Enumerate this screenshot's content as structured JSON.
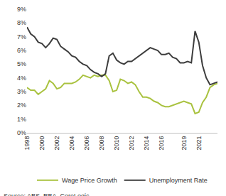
{
  "chart_data": {
    "type": "line",
    "x": [
      1998,
      1998.5,
      1999,
      1999.5,
      2000,
      2000.5,
      2001,
      2001.5,
      2002,
      2002.5,
      2003,
      2003.5,
      2004,
      2004.5,
      2005,
      2005.5,
      2006,
      2006.5,
      2007,
      2007.5,
      2008,
      2008.5,
      2009,
      2009.5,
      2010,
      2010.5,
      2011,
      2011.5,
      2012,
      2012.5,
      2013,
      2013.5,
      2014,
      2014.5,
      2015,
      2015.5,
      2016,
      2016.5,
      2017,
      2017.5,
      2018,
      2018.5,
      2019,
      2019.5,
      2020,
      2020.5,
      2021,
      2021.5,
      2022,
      2022.5,
      2023,
      2023.5
    ],
    "series": [
      {
        "name": "Wage Price Growth",
        "color": "#a9c23f",
        "values": [
          3.3,
          3.1,
          3.1,
          2.8,
          3.0,
          3.2,
          3.8,
          3.6,
          3.2,
          3.3,
          3.6,
          3.6,
          3.6,
          3.7,
          3.9,
          4.2,
          4.1,
          4.0,
          4.2,
          4.1,
          4.2,
          4.2,
          3.8,
          3.0,
          3.1,
          3.9,
          3.8,
          3.6,
          3.7,
          3.5,
          3.0,
          2.6,
          2.6,
          2.5,
          2.3,
          2.2,
          2.0,
          1.9,
          1.9,
          2.0,
          2.1,
          2.2,
          2.3,
          2.2,
          2.1,
          1.4,
          1.5,
          2.2,
          2.6,
          3.3,
          3.5,
          3.6
        ]
      },
      {
        "name": "Unemployment Rate",
        "color": "#3d3d3d",
        "values": [
          7.7,
          7.2,
          7.0,
          6.6,
          6.5,
          6.2,
          6.5,
          6.9,
          6.8,
          6.3,
          6.1,
          5.9,
          5.6,
          5.5,
          5.2,
          5.0,
          4.9,
          4.6,
          4.4,
          4.3,
          4.1,
          4.3,
          5.6,
          5.8,
          5.3,
          5.1,
          5.0,
          5.2,
          5.2,
          5.4,
          5.6,
          5.8,
          6.0,
          6.2,
          6.1,
          6.0,
          5.7,
          5.7,
          5.8,
          5.5,
          5.4,
          5.1,
          5.1,
          5.2,
          5.1,
          7.4,
          6.6,
          4.9,
          4.0,
          3.5,
          3.6,
          3.7
        ]
      }
    ],
    "xlim": [
      1998,
      2023.5
    ],
    "xticks": [
      1998,
      2000,
      2002,
      2004,
      2006,
      2008,
      2010,
      2012,
      2014,
      2016,
      2019,
      2021
    ],
    "ylim": [
      0,
      9
    ],
    "yticks": [
      {
        "value": 0,
        "label": "0%"
      },
      {
        "value": 1,
        "label": "1%"
      },
      {
        "value": 2,
        "label": "2%"
      },
      {
        "value": 3,
        "label": "3%"
      },
      {
        "value": 4,
        "label": "4%"
      },
      {
        "value": 5,
        "label": "5%"
      },
      {
        "value": 6,
        "label": "6%"
      },
      {
        "value": 7,
        "label": "7%"
      },
      {
        "value": 8,
        "label": "8%"
      },
      {
        "value": 9,
        "label": "9%"
      }
    ],
    "grid": false,
    "legend": "bottom",
    "annotations": [
      "Source: ABS, RBA, CoreLogic"
    ]
  }
}
